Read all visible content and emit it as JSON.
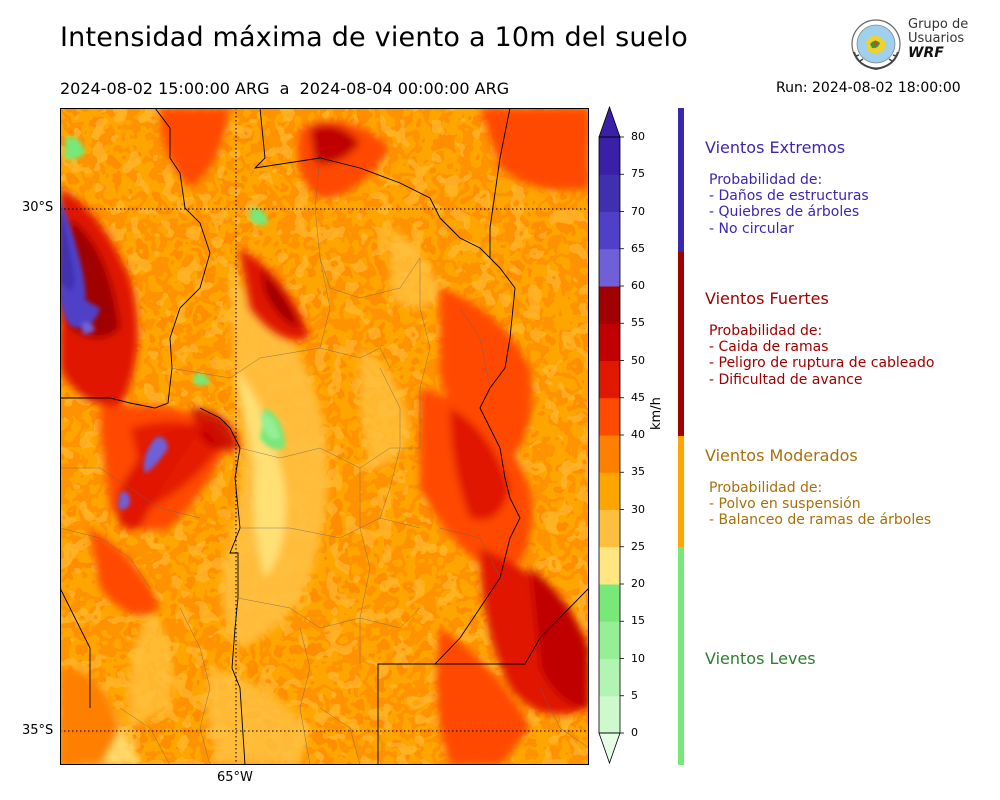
{
  "title": "Intensidad máxima de viento a 10m del suelo",
  "period": "2024-08-02 15:00:00 ARG  a  2024-08-04 00:00:00 ARG",
  "run": "Run: 2024-08-02 18:00:00",
  "logo": {
    "line1": "Grupo de",
    "line2": "Usuarios",
    "line3": "WRF"
  },
  "axes": {
    "lat_labels": [
      "30°S",
      "35°S"
    ],
    "lon_labels": [
      "65°W"
    ]
  },
  "colorbar": {
    "unit": "km/h",
    "ticks": [
      "80",
      "75",
      "70",
      "65",
      "60",
      "55",
      "50",
      "45",
      "40",
      "35",
      "30",
      "25",
      "20",
      "15",
      "10",
      "5",
      "0"
    ],
    "colors": [
      "#e6fde6",
      "#cdf9cd",
      "#b2f5b2",
      "#96ef96",
      "#78e878",
      "#ffe680",
      "#ffc040",
      "#ffa500",
      "#ff7f00",
      "#ff4a00",
      "#e01800",
      "#c00000",
      "#a00000",
      "#7060d8",
      "#5040c8",
      "#4030b0",
      "#3a20a8"
    ]
  },
  "categories": [
    {
      "title": "Vientos Extremos",
      "color": "#3a27b0",
      "intro": "Probabilidad de:",
      "items": [
        "- Daños de estructuras",
        "- Quiebres de árboles",
        "- No circular"
      ]
    },
    {
      "title": "Vientos Fuertes",
      "color": "#a00000",
      "intro": "Probabilidad de:",
      "items": [
        "- Caida de ramas",
        "- Peligro de ruptura de cableado",
        "- Dificultad de avance"
      ]
    },
    {
      "title": "Vientos Moderados",
      "color": "#a87008",
      "intro": "Probabilidad de:",
      "items": [
        "- Polvo en suspensión",
        "- Balanceo de ramas de árboles"
      ]
    },
    {
      "title": "Vientos Leves",
      "color": "#2e7d2e",
      "intro": "",
      "items": []
    }
  ],
  "category_bar_colors": [
    "#3a27b0",
    "#a00000",
    "#ffa500",
    "#78e878"
  ]
}
